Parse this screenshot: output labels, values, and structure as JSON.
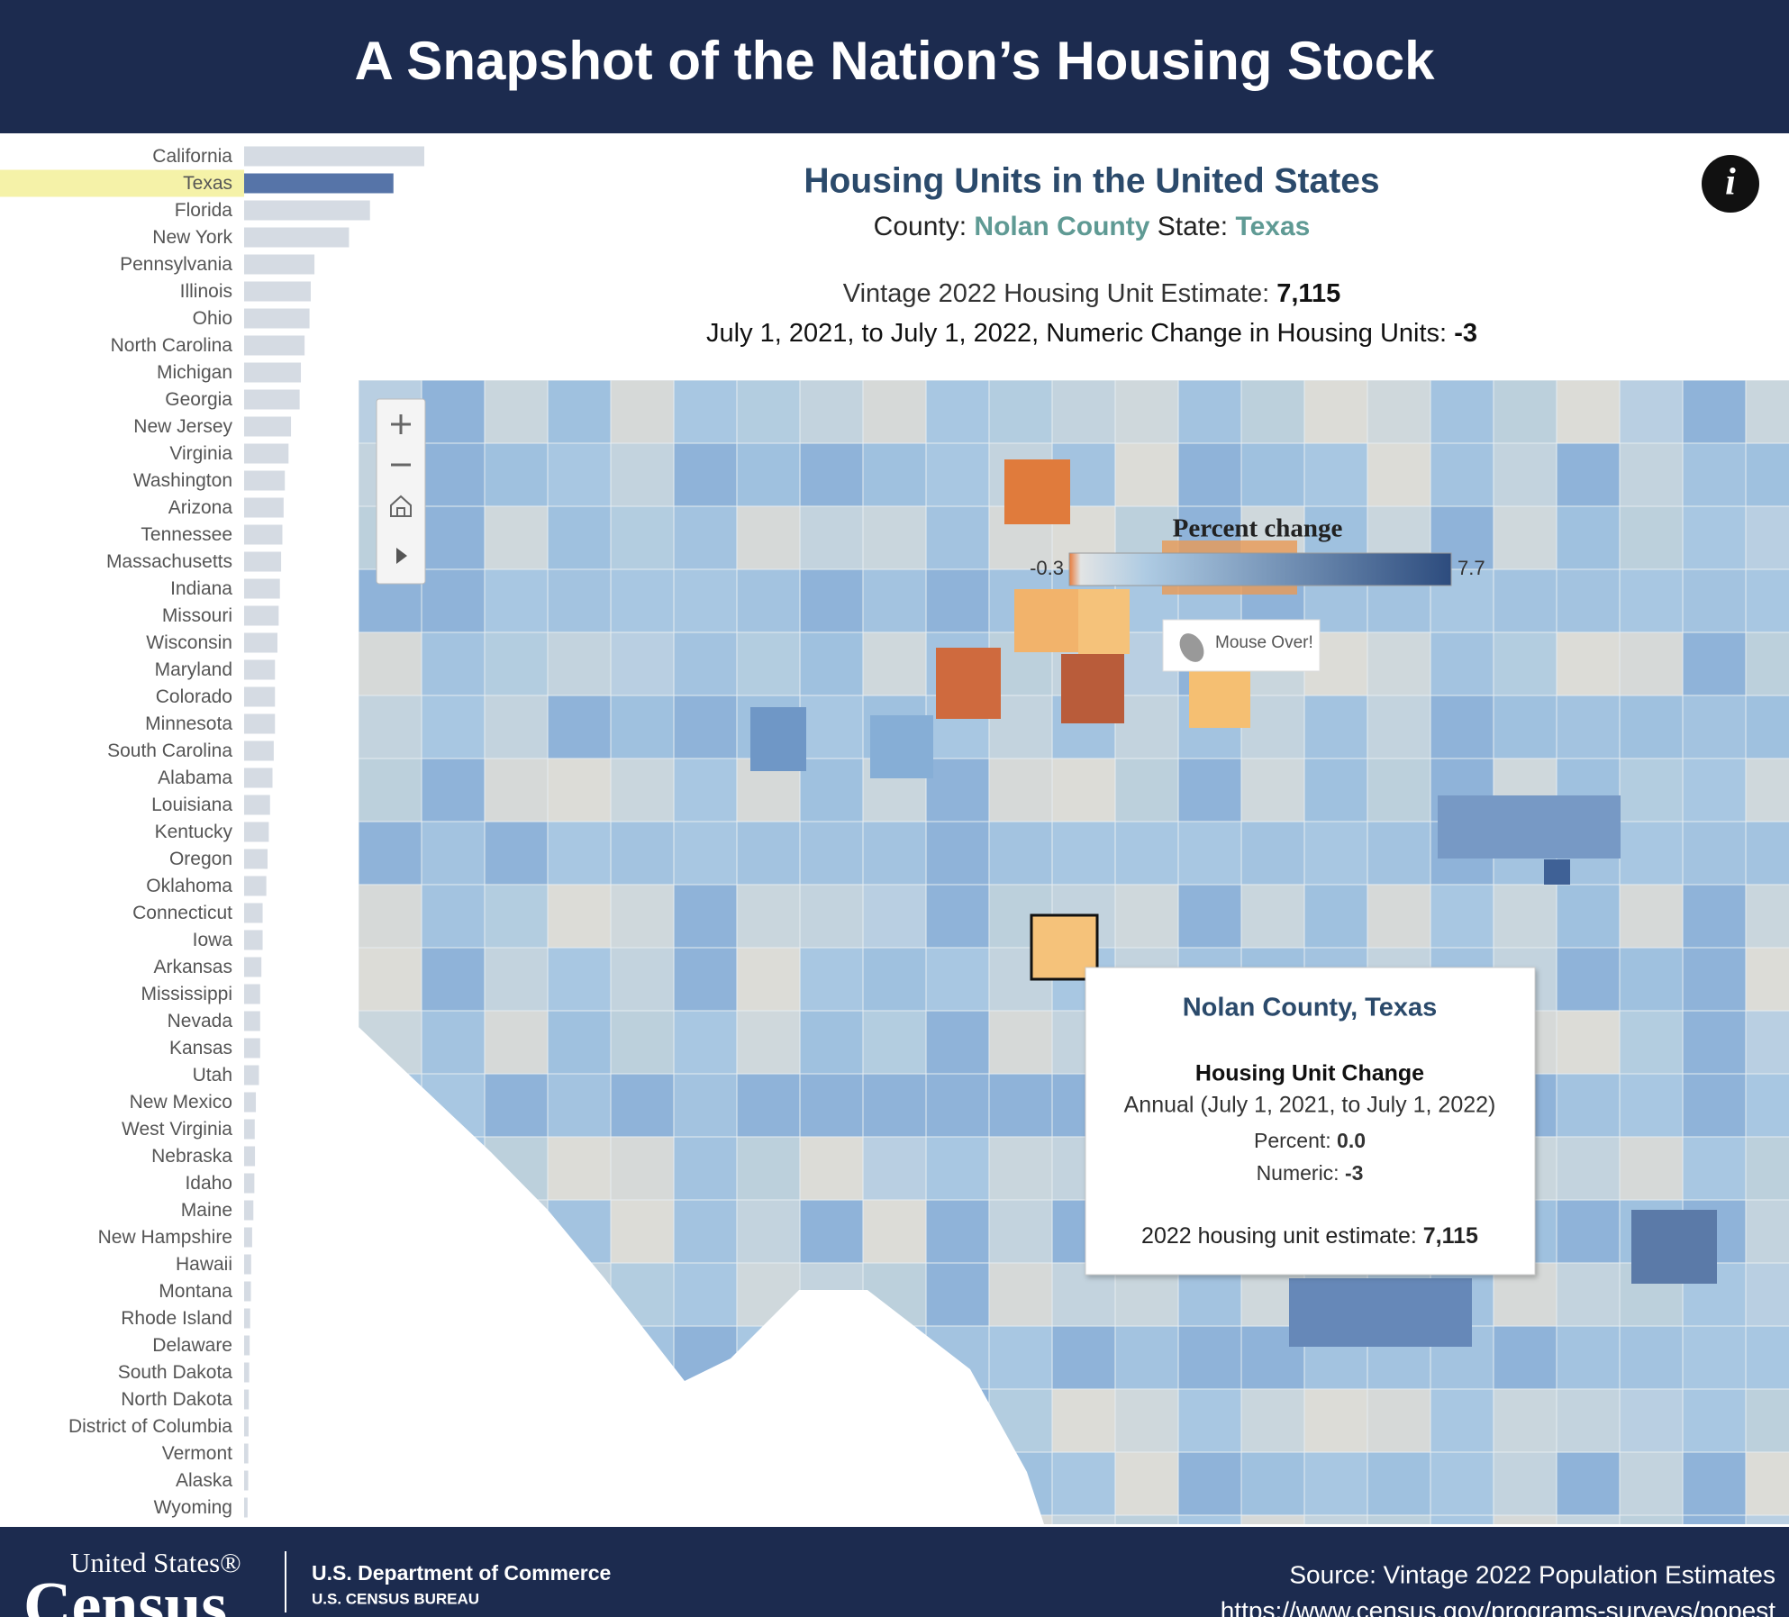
{
  "header": {
    "title": "A Snapshot of the Nation’s Housing Stock"
  },
  "chart_data": {
    "type": "bar",
    "orientation": "horizontal",
    "categories": [
      "California",
      "Texas",
      "Florida",
      "New York",
      "Pennsylvania",
      "Illinois",
      "Ohio",
      "North Carolina",
      "Michigan",
      "Georgia",
      "New Jersey",
      "Virginia",
      "Washington",
      "Arizona",
      "Tennessee",
      "Massachusetts",
      "Indiana",
      "Missouri",
      "Wisconsin",
      "Maryland",
      "Colorado",
      "Minnesota",
      "South Carolina",
      "Alabama",
      "Louisiana",
      "Kentucky",
      "Oregon",
      "Oklahoma",
      "Connecticut",
      "Iowa",
      "Arkansas",
      "Mississippi",
      "Nevada",
      "Kansas",
      "Utah",
      "New Mexico",
      "West Virginia",
      "Nebraska",
      "Idaho",
      "Maine",
      "New Hampshire",
      "Hawaii",
      "Montana",
      "Rhode Island",
      "Delaware",
      "South Dakota",
      "North Dakota",
      "District of Columbia",
      "Vermont",
      "Alaska",
      "Wyoming"
    ],
    "values": [
      14.6,
      12.1,
      10.2,
      8.5,
      5.7,
      5.4,
      5.3,
      4.9,
      4.6,
      4.5,
      3.8,
      3.6,
      3.3,
      3.2,
      3.1,
      3.0,
      2.9,
      2.8,
      2.7,
      2.5,
      2.5,
      2.5,
      2.4,
      2.3,
      2.1,
      2.0,
      1.9,
      1.8,
      1.5,
      1.5,
      1.4,
      1.3,
      1.3,
      1.3,
      1.2,
      0.95,
      0.86,
      0.88,
      0.83,
      0.75,
      0.65,
      0.57,
      0.55,
      0.49,
      0.45,
      0.41,
      0.38,
      0.36,
      0.34,
      0.33,
      0.28
    ],
    "color": "#d5dbe3",
    "selected_index": 1,
    "selected_color": "#5674a8",
    "selected_background": "#f5f2a8"
  },
  "panel": {
    "title": "Housing Units in the United States",
    "county_label": "County:",
    "county": "Nolan County",
    "state_label": "State:",
    "state": "Texas",
    "estimate_label": "Vintage 2022 Housing Unit Estimate:",
    "estimate": "7,115",
    "change_label": "July 1, 2021, to July 1, 2022, Numeric Change in Housing Units:",
    "change": "-3"
  },
  "legend": {
    "title": "Percent change",
    "min": -0.3,
    "max": 7.7
  },
  "map": {
    "hint": "Mouse Over!"
  },
  "tooltip": {
    "title": "Nolan County, Texas",
    "heading": "Housing Unit Change",
    "period": "Annual (July 1, 2021, to July 1, 2022)",
    "percent_label": "Percent:",
    "percent": "0.0",
    "numeric_label": "Numeric:",
    "numeric": "-3",
    "estimate_label": "2022 housing unit estimate:",
    "estimate": "7,115"
  },
  "footer": {
    "logo_top": "United States®",
    "logo_bottom": "Census",
    "department": "U.S. Department of Commerce",
    "bureau": "U.S. CENSUS BUREAU",
    "source": "Source: Vintage 2022 Population Estimates",
    "url": "https://www.census.gov/programs-surveys/popest"
  }
}
